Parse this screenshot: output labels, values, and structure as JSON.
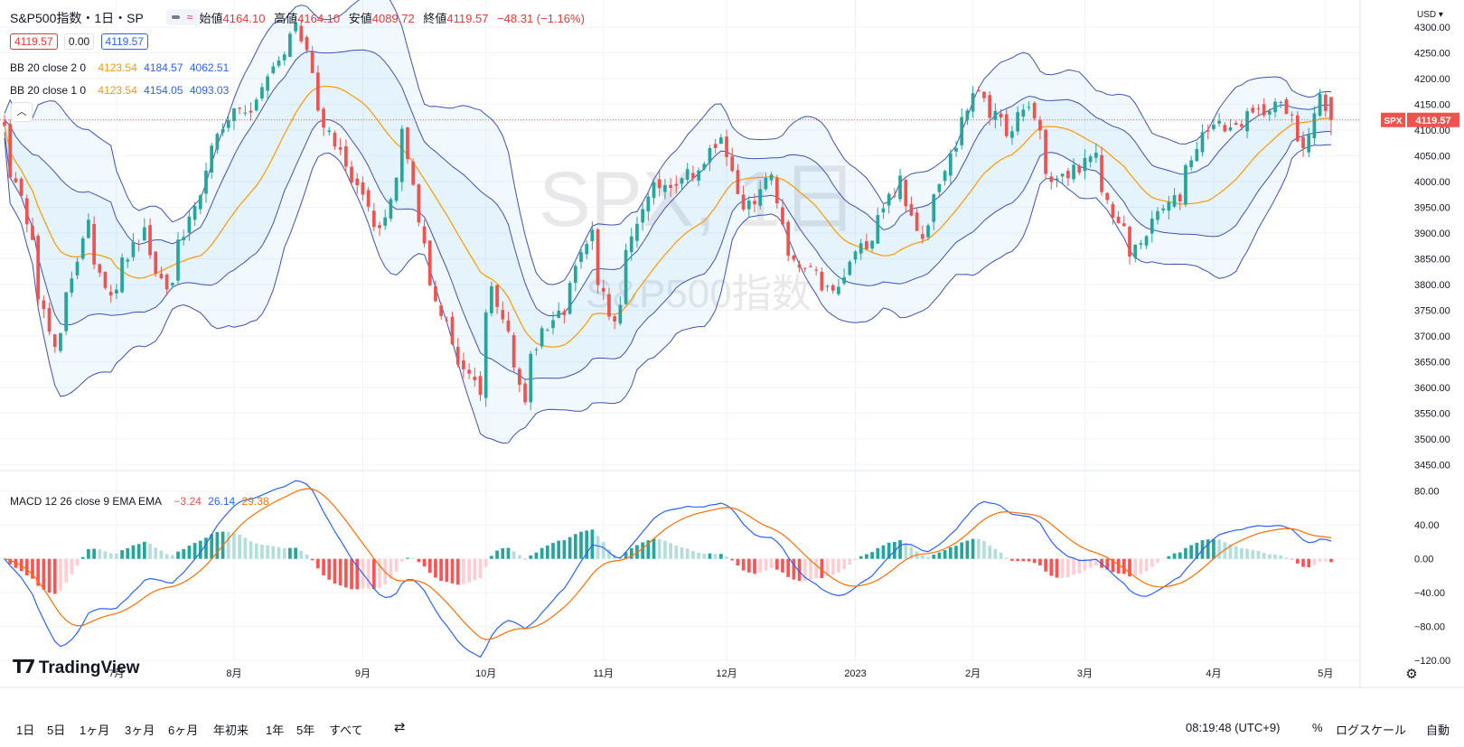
{
  "header": {
    "symbol": "S&P500指数・1日・SP",
    "ohlc": [
      {
        "label": "始値",
        "value": "4164.10"
      },
      {
        "label": "高値",
        "value": "4164.10"
      },
      {
        "label": "安値",
        "value": "4089.72"
      },
      {
        "label": "終値",
        "value": "4119.57"
      }
    ],
    "change": "−48.31 (−1.16%)",
    "sell": "4119.57",
    "spread": "0.00",
    "buy": "4119.57"
  },
  "indicators": {
    "bb2": {
      "label": "BB 20 close 2 0",
      "basis": "4123.54",
      "upper": "4184.57",
      "lower": "4062.51"
    },
    "bb1": {
      "label": "BB 20 close 1 0",
      "basis": "4123.54",
      "upper": "4154.05",
      "lower": "4093.03"
    },
    "macd": {
      "label": "MACD 12 26 close 9 EMA EMA",
      "hist": "−3.24",
      "macd": "26.14",
      "signal": "29.38"
    }
  },
  "watermark": {
    "line1": "SPX, 1日",
    "line2": "S&P500指数"
  },
  "price_tag": {
    "symbol": "SPX",
    "value": "4119.57"
  },
  "currency": "USD",
  "brand": "TradingView",
  "bottom": {
    "timeframes": [
      "1日",
      "5日",
      "1ヶ月",
      "3ヶ月",
      "6ヶ月",
      "年初来",
      "1年",
      "5年",
      "すべて"
    ],
    "time": "08:19:48 (UTC+9)",
    "percent": "%",
    "log": "ログスケール",
    "auto": "自動"
  },
  "colors": {
    "up": "#26a69a",
    "down": "#ef5350",
    "basis": "#ff9800",
    "band": "#3f51b5",
    "macd": "#2962ff",
    "signal": "#ff6d00"
  },
  "chart_data": {
    "type": "candlestick",
    "price_axis": {
      "ticks": [
        3450,
        3500,
        3550,
        3600,
        3650,
        3700,
        3750,
        3800,
        3850,
        3900,
        3950,
        4000,
        4050,
        4100,
        4150,
        4200,
        4250,
        4300
      ],
      "range": [
        3440,
        4335
      ]
    },
    "macd_axis": {
      "ticks": [
        -120,
        -80,
        -40,
        0,
        40,
        80
      ],
      "range": [
        -122,
        100
      ]
    },
    "x_labels": [
      {
        "label": "7月",
        "date": "2022-07-01"
      },
      {
        "label": "8月",
        "date": "2022-08-01"
      },
      {
        "label": "9月",
        "date": "2022-09-01"
      },
      {
        "label": "10月",
        "date": "2022-10-03"
      },
      {
        "label": "11月",
        "date": "2022-11-01"
      },
      {
        "label": "12月",
        "date": "2022-12-01"
      },
      {
        "label": "2023",
        "date": "2023-01-03"
      },
      {
        "label": "2月",
        "date": "2023-02-01"
      },
      {
        "label": "3月",
        "date": "2023-03-01"
      },
      {
        "label": "4月",
        "date": "2023-04-03"
      },
      {
        "label": "5月",
        "date": "2023-05-01"
      }
    ],
    "first_date": "2022-06-03",
    "last_date": "2023-05-02",
    "close_anchors": [
      {
        "date": "2022-06-03",
        "close": 4108
      },
      {
        "date": "2022-06-10",
        "close": 3900
      },
      {
        "date": "2022-06-16",
        "close": 3667
      },
      {
        "date": "2022-06-24",
        "close": 3912
      },
      {
        "date": "2022-06-30",
        "close": 3785
      },
      {
        "date": "2022-07-08",
        "close": 3899
      },
      {
        "date": "2022-07-14",
        "close": 3790
      },
      {
        "date": "2022-07-22",
        "close": 3961
      },
      {
        "date": "2022-07-29",
        "close": 4130
      },
      {
        "date": "2022-08-05",
        "close": 4145
      },
      {
        "date": "2022-08-16",
        "close": 4305
      },
      {
        "date": "2022-08-22",
        "close": 4137
      },
      {
        "date": "2022-08-26",
        "close": 4057
      },
      {
        "date": "2022-09-06",
        "close": 3908
      },
      {
        "date": "2022-09-12",
        "close": 4110
      },
      {
        "date": "2022-09-16",
        "close": 3873
      },
      {
        "date": "2022-09-23",
        "close": 3693
      },
      {
        "date": "2022-09-30",
        "close": 3585
      },
      {
        "date": "2022-10-04",
        "close": 3791
      },
      {
        "date": "2022-10-12",
        "close": 3577
      },
      {
        "date": "2022-10-13",
        "close": 3669
      },
      {
        "date": "2022-10-21",
        "close": 3753
      },
      {
        "date": "2022-10-28",
        "close": 3901
      },
      {
        "date": "2022-11-03",
        "close": 3720
      },
      {
        "date": "2022-11-10",
        "close": 3956
      },
      {
        "date": "2022-11-15",
        "close": 3992
      },
      {
        "date": "2022-11-25",
        "close": 4026
      },
      {
        "date": "2022-11-30",
        "close": 4080
      },
      {
        "date": "2022-12-06",
        "close": 3941
      },
      {
        "date": "2022-12-13",
        "close": 4019
      },
      {
        "date": "2022-12-16",
        "close": 3852
      },
      {
        "date": "2022-12-22",
        "close": 3822
      },
      {
        "date": "2022-12-28",
        "close": 3783
      },
      {
        "date": "2023-01-06",
        "close": 3895
      },
      {
        "date": "2023-01-13",
        "close": 3999
      },
      {
        "date": "2023-01-19",
        "close": 3899
      },
      {
        "date": "2023-01-27",
        "close": 4070
      },
      {
        "date": "2023-02-02",
        "close": 4179
      },
      {
        "date": "2023-02-10",
        "close": 4090
      },
      {
        "date": "2023-02-15",
        "close": 4147
      },
      {
        "date": "2023-02-21",
        "close": 3997
      },
      {
        "date": "2023-03-03",
        "close": 4045
      },
      {
        "date": "2023-03-09",
        "close": 3918
      },
      {
        "date": "2023-03-13",
        "close": 3855
      },
      {
        "date": "2023-03-17",
        "close": 3916
      },
      {
        "date": "2023-03-24",
        "close": 3970
      },
      {
        "date": "2023-03-31",
        "close": 4109
      },
      {
        "date": "2023-04-07",
        "close": 4105
      },
      {
        "date": "2023-04-14",
        "close": 4137
      },
      {
        "date": "2023-04-18",
        "close": 4155
      },
      {
        "date": "2023-04-25",
        "close": 4071
      },
      {
        "date": "2023-04-28",
        "close": 4169
      },
      {
        "date": "2023-05-02",
        "close": 4119.57
      }
    ],
    "last_bar": {
      "open": 4164.1,
      "high": 4164.1,
      "low": 4089.72,
      "close": 4119.57
    },
    "series": [
      {
        "name": "BB 20 close 2 0"
      },
      {
        "name": "BB 20 close 1 0"
      },
      {
        "name": "MACD 12 26 close 9 EMA EMA"
      }
    ]
  }
}
